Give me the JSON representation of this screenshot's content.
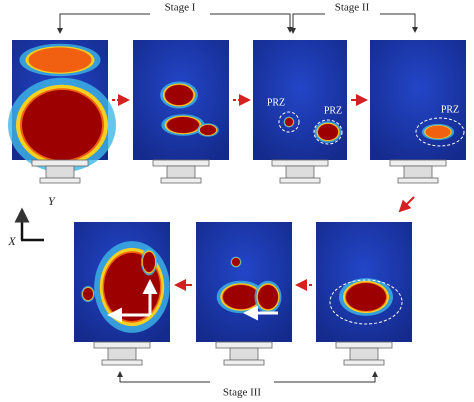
{
  "stages": [
    "Stage I",
    "Stage II",
    "Stage III"
  ],
  "annotations": [
    {
      "label": "PRZ"
    },
    {
      "label": "PRZ"
    },
    {
      "label": "PRZ"
    }
  ],
  "axes": {
    "x": "X",
    "y": "Y"
  }
}
